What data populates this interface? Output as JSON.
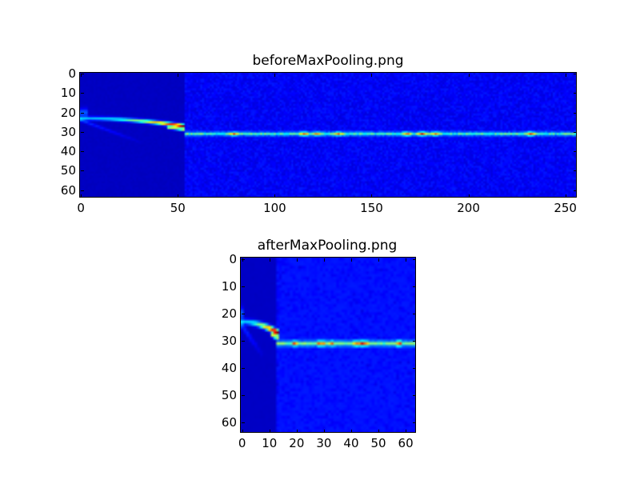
{
  "chart_data": [
    {
      "type": "heatmap",
      "title": "beforeMaxPooling.png",
      "colormap": "jet",
      "xlim": [
        -0.5,
        255.5
      ],
      "ylim": [
        63.5,
        -0.5
      ],
      "image_shape": [
        64,
        256
      ],
      "xticks": [
        0,
        50,
        100,
        150,
        200,
        250
      ],
      "yticks": [
        0,
        10,
        20,
        30,
        40,
        50,
        60
      ],
      "grid": false
    },
    {
      "type": "heatmap",
      "title": "afterMaxPooling.png",
      "colormap": "jet",
      "xlim": [
        -0.5,
        63.5
      ],
      "ylim": [
        63.5,
        -0.5
      ],
      "image_shape": [
        64,
        64
      ],
      "xticks": [
        0,
        10,
        20,
        30,
        40,
        50,
        60
      ],
      "yticks": [
        0,
        10,
        20,
        30,
        40,
        50,
        60
      ],
      "grid": false
    }
  ]
}
